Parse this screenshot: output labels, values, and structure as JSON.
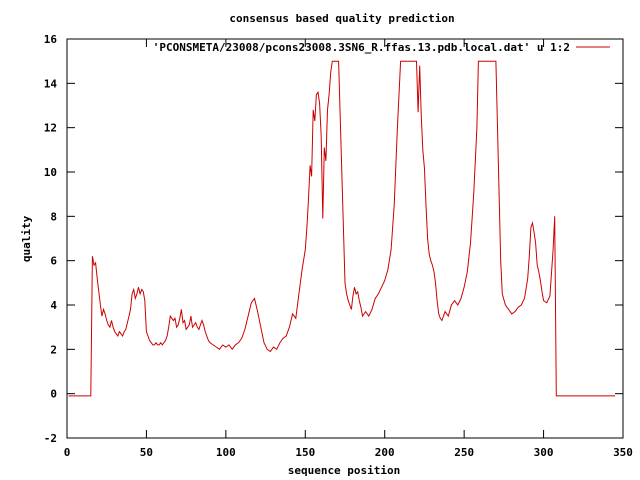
{
  "chart_data": {
    "type": "line",
    "title": "consensus based quality prediction",
    "xlabel": "sequence position",
    "ylabel": "quality",
    "xlim": [
      0,
      350
    ],
    "ylim": [
      -2,
      16
    ],
    "xticks": [
      0,
      50,
      100,
      150,
      200,
      250,
      300,
      350
    ],
    "yticks": [
      -2,
      0,
      2,
      4,
      6,
      8,
      10,
      12,
      14,
      16
    ],
    "grid": false,
    "legend_position": "top-right",
    "series": [
      {
        "name": "'PCONSMETA/23008/pcons23008.3SN6_R.ffas.13.pdb.local.dat' u 1:2",
        "color": "#cc0000",
        "x": [
          1,
          15,
          16,
          17,
          18,
          19,
          20,
          21,
          22,
          23,
          24,
          25,
          26,
          27,
          28,
          29,
          30,
          31,
          32,
          33,
          34,
          35,
          36,
          37,
          38,
          39,
          40,
          41,
          42,
          43,
          44,
          45,
          46,
          47,
          48,
          49,
          50,
          51,
          52,
          53,
          54,
          55,
          56,
          57,
          58,
          59,
          60,
          61,
          62,
          63,
          64,
          65,
          66,
          67,
          68,
          69,
          70,
          71,
          72,
          73,
          74,
          75,
          76,
          77,
          78,
          79,
          80,
          81,
          82,
          83,
          84,
          85,
          86,
          87,
          88,
          89,
          90,
          92,
          94,
          96,
          98,
          100,
          102,
          104,
          106,
          108,
          110,
          112,
          114,
          116,
          118,
          120,
          122,
          124,
          126,
          128,
          130,
          132,
          134,
          136,
          138,
          140,
          142,
          144,
          146,
          148,
          150,
          151,
          152,
          153,
          154,
          155,
          156,
          157,
          158,
          159,
          160,
          161,
          162,
          163,
          164,
          165,
          166,
          167,
          168,
          169,
          170,
          171,
          172,
          173,
          174,
          175,
          176,
          177,
          178,
          179,
          180,
          181,
          182,
          183,
          184,
          185,
          186,
          188,
          190,
          192,
          194,
          196,
          198,
          200,
          202,
          204,
          206,
          208,
          210,
          212,
          214,
          215,
          216,
          217,
          218,
          219,
          220,
          221,
          222,
          223,
          224,
          225,
          226,
          227,
          228,
          229,
          230,
          231,
          232,
          233,
          234,
          235,
          236,
          238,
          240,
          242,
          244,
          246,
          248,
          250,
          252,
          254,
          256,
          258,
          259,
          260,
          261,
          262,
          263,
          264,
          265,
          266,
          267,
          268,
          269,
          270,
          271,
          272,
          273,
          274,
          276,
          278,
          280,
          282,
          284,
          286,
          288,
          290,
          291,
          292,
          293,
          294,
          295,
          296,
          297,
          298,
          299,
          300,
          302,
          304,
          306,
          307,
          308,
          310,
          320,
          330,
          345
        ],
        "y": [
          -0.1,
          -0.1,
          6.2,
          5.8,
          5.9,
          5.2,
          4.6,
          4.0,
          3.5,
          3.8,
          3.6,
          3.3,
          3.1,
          3.0,
          3.3,
          3.0,
          2.8,
          2.7,
          2.6,
          2.8,
          2.7,
          2.6,
          2.8,
          2.9,
          3.2,
          3.5,
          3.8,
          4.5,
          4.7,
          4.3,
          4.5,
          4.8,
          4.5,
          4.7,
          4.6,
          4.2,
          2.8,
          2.6,
          2.4,
          2.3,
          2.2,
          2.2,
          2.3,
          2.2,
          2.2,
          2.3,
          2.2,
          2.3,
          2.4,
          2.6,
          3.0,
          3.5,
          3.4,
          3.3,
          3.4,
          3.0,
          3.1,
          3.4,
          3.8,
          3.2,
          3.3,
          2.9,
          3.0,
          3.1,
          3.5,
          3.0,
          3.1,
          3.2,
          3.0,
          2.9,
          3.1,
          3.3,
          3.1,
          2.8,
          2.6,
          2.4,
          2.3,
          2.2,
          2.1,
          2.0,
          2.2,
          2.1,
          2.2,
          2.0,
          2.2,
          2.3,
          2.5,
          2.9,
          3.5,
          4.1,
          4.3,
          3.7,
          3.0,
          2.3,
          2.0,
          1.9,
          2.1,
          2.0,
          2.3,
          2.5,
          2.6,
          3.0,
          3.6,
          3.4,
          4.5,
          5.6,
          6.5,
          7.5,
          8.8,
          10.3,
          9.8,
          12.8,
          12.3,
          13.5,
          13.6,
          13.1,
          11.6,
          7.9,
          11.1,
          10.5,
          12.8,
          13.5,
          14.5,
          15.0,
          15.0,
          15.0,
          15.0,
          15.0,
          12.5,
          10.0,
          7.5,
          5.0,
          4.5,
          4.2,
          4.0,
          3.8,
          4.4,
          4.8,
          4.5,
          4.6,
          4.2,
          3.9,
          3.5,
          3.7,
          3.5,
          3.8,
          4.3,
          4.5,
          4.8,
          5.1,
          5.6,
          6.5,
          8.5,
          12.0,
          15.0,
          15.0,
          15.0,
          15.0,
          15.0,
          15.0,
          15.0,
          15.0,
          15.0,
          12.7,
          14.8,
          12.5,
          11.0,
          10.2,
          8.5,
          7.0,
          6.3,
          6.0,
          5.8,
          5.5,
          5.0,
          4.2,
          3.6,
          3.4,
          3.3,
          3.7,
          3.5,
          4.0,
          4.2,
          4.0,
          4.3,
          4.8,
          5.5,
          6.8,
          9.0,
          12.0,
          15.0,
          15.0,
          15.0,
          15.0,
          15.0,
          15.0,
          15.0,
          15.0,
          15.0,
          15.0,
          15.0,
          15.0,
          12.0,
          9.0,
          6.0,
          4.5,
          4.0,
          3.8,
          3.6,
          3.7,
          3.9,
          4.0,
          4.3,
          5.2,
          6.2,
          7.5,
          7.7,
          7.3,
          6.8,
          5.8,
          5.5,
          5.1,
          4.6,
          4.2,
          4.1,
          4.4,
          6.5,
          8.0,
          -0.1,
          -0.1,
          -0.1,
          -0.1,
          -0.1
        ]
      }
    ]
  }
}
